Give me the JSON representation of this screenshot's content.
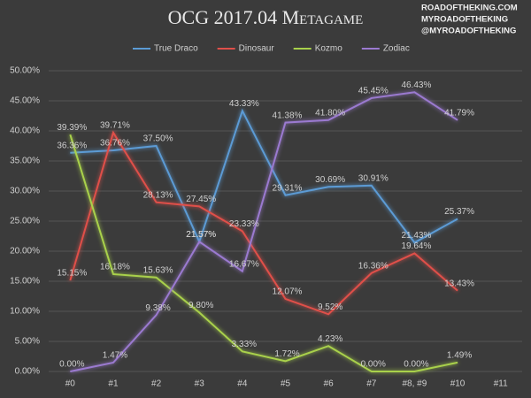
{
  "chart_data": {
    "type": "line",
    "title": "OCG 2017.04 Metagame",
    "watermark": [
      "ROADOFTHEKING.COM",
      "MYROADOFTHEKING",
      "@MYROADOFTHEKING"
    ],
    "categories": [
      "#0",
      "#1",
      "#2",
      "#3",
      "#4",
      "#5",
      "#6",
      "#7",
      "#8, #9",
      "#10",
      "#11"
    ],
    "series": [
      {
        "name": "True Draco",
        "color": "#5b9bd5",
        "values": [
          36.36,
          36.76,
          37.5,
          21.57,
          43.33,
          29.31,
          30.69,
          30.91,
          21.43,
          25.37,
          null
        ],
        "value_labels": [
          "36.36%",
          "36.76%",
          "37.50%",
          "21.57%",
          "43.33%",
          "29.31%",
          "30.69%",
          "30.91%",
          "21.43%",
          "25.37%",
          null
        ]
      },
      {
        "name": "Dinosaur",
        "color": "#e0504a",
        "values": [
          15.15,
          39.71,
          28.13,
          27.45,
          23.33,
          12.07,
          9.52,
          16.36,
          19.64,
          13.43,
          null
        ],
        "value_labels": [
          "15.15%",
          "39.71%",
          "28.13%",
          "27.45%",
          "23.33%",
          "12.07%",
          "9.52%",
          "16.36%",
          "19.64%",
          "13.43%",
          null
        ]
      },
      {
        "name": "Kozmo",
        "color": "#a9d14b",
        "values": [
          39.39,
          16.18,
          15.63,
          9.8,
          3.33,
          1.72,
          4.23,
          0,
          0,
          1.49,
          null
        ],
        "value_labels": [
          "39.39%",
          "16.18%",
          "15.63%",
          "9.80%",
          "3.33%",
          "1.72%",
          "4.23%",
          "0.00%",
          "0.00%",
          "1.49%",
          null
        ]
      },
      {
        "name": "Zodiac",
        "color": "#9b7ad0",
        "values": [
          0,
          1.47,
          9.38,
          21.57,
          16.67,
          41.38,
          41.8,
          45.45,
          46.43,
          41.79,
          null
        ],
        "value_labels": [
          "0.00%",
          "1.47%",
          "9.38%",
          "21.57%",
          "16.67%",
          "41.38%",
          "41.80%",
          "45.45%",
          "46.43%",
          "41.79%",
          null
        ]
      }
    ],
    "ylim": [
      0,
      50
    ],
    "yticks": [
      {
        "value": 0,
        "label": "0.00%"
      },
      {
        "value": 5,
        "label": "5.00%"
      },
      {
        "value": 10,
        "label": "10.00%"
      },
      {
        "value": 15,
        "label": "15.00%"
      },
      {
        "value": 20,
        "label": "20.00%"
      },
      {
        "value": 25,
        "label": "25.00%"
      },
      {
        "value": 30,
        "label": "30.00%"
      },
      {
        "value": 35,
        "label": "35.00%"
      },
      {
        "value": 40,
        "label": "40.00%"
      },
      {
        "value": 45,
        "label": "45.00%"
      },
      {
        "value": 50,
        "label": "50.00%"
      }
    ],
    "grid": true,
    "legend": "top"
  }
}
